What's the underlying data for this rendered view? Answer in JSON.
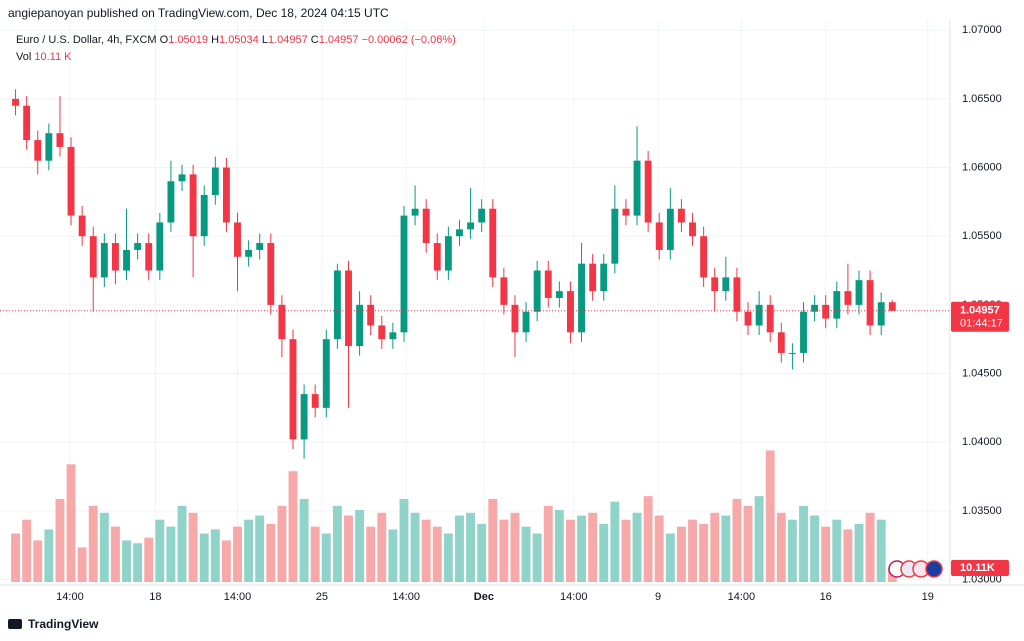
{
  "header": "angiepanoyan published on TradingView.com, Dec 18, 2024 04:15 UTC",
  "footer": "TradingView",
  "legend": {
    "symbol": "Euro / U.S. Dollar, 4h, FXCM",
    "o_label": "O",
    "o": "1.05019",
    "h_label": "H",
    "h": "1.05034",
    "l_label": "L",
    "l": "1.04957",
    "c_label": "C",
    "c": "1.04957",
    "change": "−0.00062 (−0.06%)",
    "vol_label": "Vol",
    "vol": "10.11 K"
  },
  "last": {
    "price": "1.04957",
    "countdown": "01:44:17",
    "volume": "10.11K"
  },
  "chart_data": {
    "type": "candlestick",
    "up_color": "#089981",
    "down_color": "#f23645",
    "volume_up_color": "#8fd3c9",
    "volume_down_color": "#f7a9a9",
    "ylim": [
      1.0296,
      1.0722
    ],
    "yticks": [
      {
        "value": 1.07,
        "label": "1.07000"
      },
      {
        "value": 1.065,
        "label": "1.06500"
      },
      {
        "value": 1.06,
        "label": "1.06000"
      },
      {
        "value": 1.055,
        "label": "1.05500"
      },
      {
        "value": 1.05,
        "label": "1.05000"
      },
      {
        "value": 1.045,
        "label": "1.04500"
      },
      {
        "value": 1.04,
        "label": "1.04000"
      },
      {
        "value": 1.035,
        "label": "1.03500"
      },
      {
        "value": 1.03,
        "label": "1.03000"
      }
    ],
    "xlim": [
      0,
      84.7
    ],
    "xticks": [
      {
        "value": 5.4,
        "label": "14:00"
      },
      {
        "value": 13.1,
        "label": "18"
      },
      {
        "value": 20.5,
        "label": "14:00"
      },
      {
        "value": 28.1,
        "label": "25"
      },
      {
        "value": 35.7,
        "label": "14:00"
      },
      {
        "value": 42.7,
        "label": "Dec"
      },
      {
        "value": 50.8,
        "label": "14:00"
      },
      {
        "value": 58.4,
        "label": "9"
      },
      {
        "value": 65.9,
        "label": "14:00"
      },
      {
        "value": 73.5,
        "label": "16"
      },
      {
        "value": 82.7,
        "label": "19"
      }
    ],
    "vlim": [
      0,
      130
    ],
    "grid": true,
    "open": [
      1.065,
      1.0645,
      1.062,
      1.0605,
      1.0625,
      1.0615,
      1.0565,
      1.055,
      1.052,
      1.0545,
      1.0525,
      1.054,
      1.0545,
      1.0525,
      1.056,
      1.059,
      1.0595,
      1.055,
      1.058,
      1.06,
      1.056,
      1.0535,
      1.054,
      1.0545,
      1.05,
      1.0475,
      1.0402,
      1.0435,
      1.0425,
      1.0475,
      1.0525,
      1.047,
      1.05,
      1.0485,
      1.0475,
      1.048,
      1.0565,
      1.057,
      1.0545,
      1.0525,
      1.055,
      1.0555,
      1.056,
      1.057,
      1.052,
      1.05,
      1.048,
      1.0495,
      1.0525,
      1.0505,
      1.051,
      1.048,
      1.053,
      1.051,
      1.053,
      1.057,
      1.0565,
      1.0605,
      1.056,
      1.054,
      1.057,
      1.056,
      1.055,
      1.052,
      1.051,
      1.052,
      1.0495,
      1.0485,
      1.05,
      1.048,
      1.0465,
      1.0465,
      1.0495,
      1.05,
      1.049,
      1.051,
      1.05,
      1.0518,
      1.0485,
      1.05019
    ],
    "high": [
      1.0657,
      1.0652,
      1.0627,
      1.0632,
      1.0652,
      1.0622,
      1.0572,
      1.0557,
      1.0552,
      1.0552,
      1.057,
      1.0552,
      1.0552,
      1.0567,
      1.0605,
      1.0602,
      1.0602,
      1.0587,
      1.0608,
      1.0607,
      1.0567,
      1.0547,
      1.0552,
      1.0552,
      1.0507,
      1.0482,
      1.0442,
      1.0442,
      1.0482,
      1.053,
      1.0532,
      1.051,
      1.0507,
      1.0492,
      1.0487,
      1.0572,
      1.0587,
      1.0577,
      1.0552,
      1.0557,
      1.0562,
      1.0585,
      1.0577,
      1.0577,
      1.0527,
      1.0507,
      1.0502,
      1.0532,
      1.0532,
      1.0517,
      1.0517,
      1.0545,
      1.0537,
      1.0537,
      1.0587,
      1.0577,
      1.063,
      1.0612,
      1.0567,
      1.0585,
      1.0577,
      1.0567,
      1.0557,
      1.0527,
      1.0535,
      1.0527,
      1.0502,
      1.051,
      1.0507,
      1.0487,
      1.0472,
      1.0502,
      1.0507,
      1.0507,
      1.0517,
      1.053,
      1.0525,
      1.0525,
      1.0509,
      1.05034
    ],
    "low": [
      1.0638,
      1.0613,
      1.0595,
      1.0598,
      1.0608,
      1.0558,
      1.0543,
      1.0495,
      1.0513,
      1.0515,
      1.0518,
      1.0533,
      1.0518,
      1.0518,
      1.0553,
      1.0583,
      1.052,
      1.0543,
      1.0573,
      1.0553,
      1.051,
      1.0528,
      1.0533,
      1.0493,
      1.0462,
      1.0395,
      1.0388,
      1.0418,
      1.0418,
      1.0468,
      1.0425,
      1.0463,
      1.0478,
      1.0468,
      1.0468,
      1.0473,
      1.0558,
      1.0538,
      1.0518,
      1.0518,
      1.0543,
      1.0548,
      1.0553,
      1.0513,
      1.0493,
      1.0462,
      1.0473,
      1.0488,
      1.0498,
      1.0498,
      1.0472,
      1.0473,
      1.0503,
      1.0503,
      1.0523,
      1.0558,
      1.0558,
      1.0553,
      1.0533,
      1.0533,
      1.0553,
      1.0543,
      1.0513,
      1.0495,
      1.0503,
      1.0488,
      1.0478,
      1.0478,
      1.0473,
      1.0458,
      1.0453,
      1.0458,
      1.0488,
      1.0483,
      1.0483,
      1.0493,
      1.0493,
      1.0478,
      1.0478,
      1.04957
    ],
    "close": [
      1.0645,
      1.062,
      1.0605,
      1.0625,
      1.0615,
      1.0565,
      1.055,
      1.052,
      1.0545,
      1.0525,
      1.054,
      1.0545,
      1.0525,
      1.056,
      1.059,
      1.0595,
      1.055,
      1.058,
      1.06,
      1.056,
      1.0535,
      1.054,
      1.0545,
      1.05,
      1.0475,
      1.0402,
      1.0435,
      1.0425,
      1.0475,
      1.0525,
      1.047,
      1.05,
      1.0485,
      1.0475,
      1.048,
      1.0565,
      1.057,
      1.0545,
      1.0525,
      1.055,
      1.0555,
      1.056,
      1.057,
      1.052,
      1.05,
      1.048,
      1.0495,
      1.0525,
      1.0505,
      1.051,
      1.048,
      1.053,
      1.051,
      1.053,
      1.057,
      1.0565,
      1.0605,
      1.056,
      1.054,
      1.057,
      1.056,
      1.055,
      1.052,
      1.051,
      1.052,
      1.0495,
      1.0485,
      1.05,
      1.048,
      1.0465,
      1.0465,
      1.0495,
      1.05,
      1.049,
      1.051,
      1.05,
      1.0518,
      1.0485,
      1.05019,
      1.04957
    ],
    "volume": [
      35,
      45,
      30,
      38,
      60,
      85,
      25,
      55,
      50,
      40,
      30,
      28,
      32,
      45,
      40,
      55,
      50,
      35,
      38,
      30,
      40,
      45,
      48,
      42,
      55,
      80,
      60,
      40,
      35,
      55,
      48,
      52,
      40,
      50,
      38,
      60,
      50,
      45,
      40,
      35,
      48,
      50,
      42,
      60,
      45,
      50,
      40,
      35,
      55,
      52,
      45,
      48,
      50,
      42,
      58,
      45,
      50,
      62,
      48,
      35,
      40,
      45,
      42,
      50,
      48,
      60,
      55,
      62,
      95,
      50,
      45,
      55,
      48,
      40,
      45,
      38,
      42,
      50,
      45,
      10.11
    ]
  }
}
